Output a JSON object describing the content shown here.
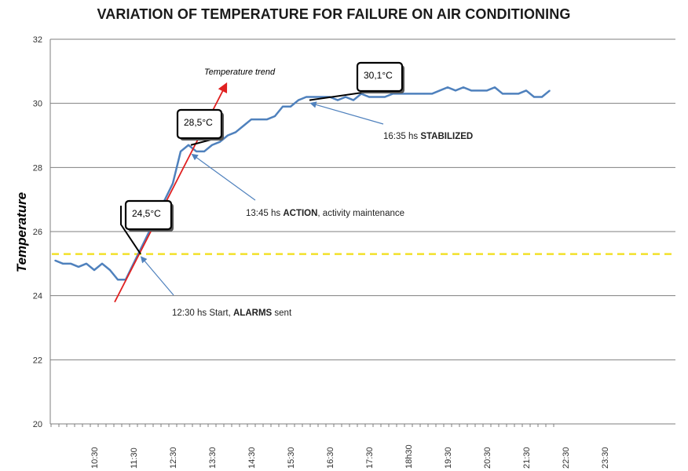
{
  "chart_data": {
    "type": "line",
    "title": "VARIATION OF TEMPERATURE FOR FAILURE ON AIR CONDITIONING",
    "ylabel": "Temperature",
    "xlabel": "",
    "ylim": [
      20,
      32
    ],
    "yticks": [
      "20",
      "22",
      "24",
      "26",
      "28",
      "30",
      "32"
    ],
    "grid": "horizontal",
    "xticks": [
      "10:30",
      "11:30",
      "12:30",
      "13:30",
      "14:30",
      "15:30",
      "16:30",
      "17:30",
      "18h30",
      "19:30",
      "20:30",
      "21:30",
      "22:30",
      "23:30"
    ],
    "series": [
      {
        "color": "#4f81bd",
        "values": [
          25.1,
          25.0,
          25.0,
          24.9,
          25.0,
          24.8,
          25.0,
          24.8,
          24.5,
          24.5,
          25.0,
          25.5,
          26.0,
          26.5,
          27.0,
          27.5,
          28.5,
          28.7,
          28.5,
          28.5,
          28.7,
          28.8,
          29.0,
          29.1,
          29.3,
          29.5,
          29.5,
          29.5,
          29.6,
          29.9,
          29.9,
          30.1,
          30.2,
          30.2,
          30.2,
          30.2,
          30.1,
          30.2,
          30.1,
          30.3,
          30.2,
          30.2,
          30.2,
          30.3,
          30.3,
          30.3,
          30.3,
          30.3,
          30.3,
          30.4,
          30.5,
          30.4,
          30.5,
          30.4,
          30.4,
          30.4,
          30.5,
          30.3,
          30.3,
          30.3,
          30.4,
          30.2,
          30.2,
          30.4
        ]
      }
    ],
    "reference_line": {
      "value": 25.3,
      "color": "#f2e12a",
      "style": "dashed"
    },
    "trend_line": {
      "label": "Temperature trend",
      "color": "#e02020",
      "from": {
        "x": 7.6,
        "y": 23.8
      },
      "to": {
        "x": 21.8,
        "y": 30.6
      }
    },
    "callouts": [
      {
        "text": "24,5°C",
        "x": 10.9,
        "y": 25.3
      },
      {
        "text": "28,5°C",
        "x": 17.3,
        "y": 28.7
      },
      {
        "text": "30,1°C",
        "x": 32.4,
        "y": 30.1
      }
    ],
    "annotations": [
      {
        "plain": "12:30 hs Start, ",
        "bold": "ALARMS",
        "tail": " sent",
        "x": 11.0,
        "y": 25.3
      },
      {
        "plain": "13:45 hs ",
        "bold": "ACTION",
        "tail": ", activity maintenance",
        "x": 17.5,
        "y": 28.5
      },
      {
        "plain": "16:35 hs ",
        "bold": "STABILIZED",
        "tail": "",
        "x": 32.6,
        "y": 30.1
      }
    ]
  }
}
